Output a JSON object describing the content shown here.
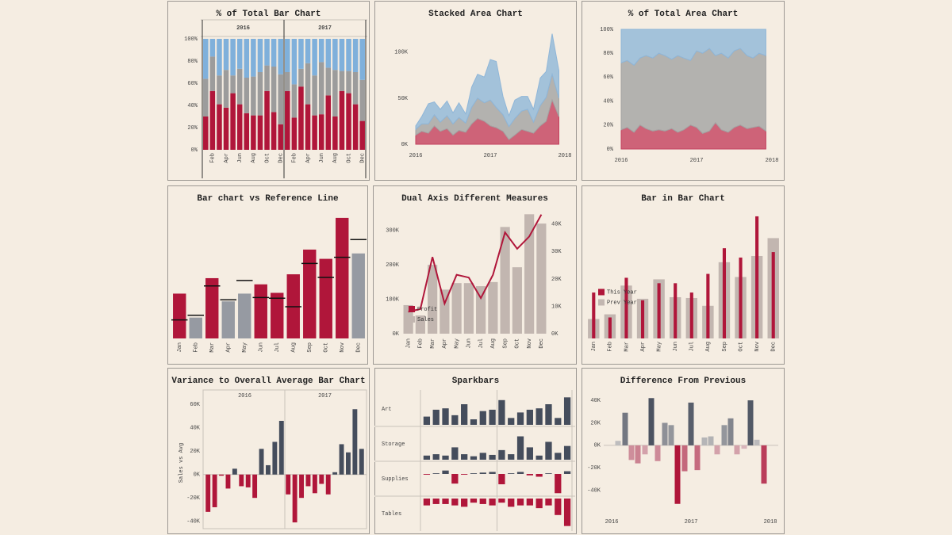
{
  "chart_data": [
    {
      "type": "percent-bar",
      "title": "% of Total Bar Chart",
      "groups": [
        {
          "name": "2016",
          "categories": [
            null,
            "Feb",
            null,
            "Apr",
            null,
            "Jun",
            null,
            "Aug",
            null,
            "Oct",
            null,
            "Dec"
          ]
        },
        {
          "name": "2017",
          "categories": [
            null,
            "Feb",
            null,
            "Apr",
            null,
            "Jun",
            null,
            "Aug",
            null,
            "Oct",
            null,
            "Dec"
          ]
        }
      ],
      "series": [
        {
          "color": "#b0163a",
          "values": [
            30,
            53,
            41,
            38,
            51,
            41,
            33,
            31,
            31,
            53,
            34,
            23,
            53,
            29,
            57,
            41,
            31,
            32,
            49,
            30,
            53,
            51,
            41,
            26
          ]
        },
        {
          "color": "#9c9c9c",
          "values": [
            34,
            31,
            26,
            34,
            16,
            32,
            32,
            35,
            39,
            23,
            41,
            45,
            17,
            30,
            16,
            37,
            36,
            47,
            25,
            42,
            18,
            20,
            29,
            37
          ]
        },
        {
          "color": "#7fb0db",
          "values": [
            36,
            16,
            33,
            28,
            33,
            27,
            35,
            34,
            30,
            24,
            25,
            32,
            30,
            41,
            27,
            22,
            33,
            21,
            26,
            28,
            29,
            29,
            30,
            37
          ]
        }
      ],
      "ylim": [
        0,
        100
      ],
      "yticks": [
        {
          "value": 0,
          "label": "0%"
        },
        {
          "value": 20,
          "label": "20%"
        },
        {
          "value": 40,
          "label": "40%"
        },
        {
          "value": 60,
          "label": "60%"
        },
        {
          "value": 80,
          "label": "80%"
        },
        {
          "value": 100,
          "label": "100%"
        }
      ]
    },
    {
      "type": "stacked-area",
      "title": "Stacked Area Chart",
      "x": [
        2016,
        2016.08,
        2016.17,
        2016.25,
        2016.33,
        2016.42,
        2016.5,
        2016.58,
        2016.67,
        2016.75,
        2016.83,
        2016.92,
        2017,
        2017.08,
        2017.17,
        2017.25,
        2017.33,
        2017.42,
        2017.5,
        2017.58,
        2017.67,
        2017.75,
        2017.83,
        2017.92
      ],
      "series": [
        {
          "color": "#c4405e",
          "values": [
            10000,
            14000,
            12000,
            20000,
            14000,
            17000,
            10000,
            15000,
            13000,
            22000,
            28000,
            25000,
            20000,
            18000,
            14000,
            5000,
            10000,
            16000,
            14000,
            12000,
            20000,
            25000,
            48000,
            30000
          ]
        },
        {
          "color": "#a3a3a3",
          "values": [
            6000,
            8000,
            10000,
            12000,
            10000,
            14000,
            12000,
            14000,
            10000,
            18000,
            22000,
            20000,
            28000,
            22000,
            18000,
            14000,
            18000,
            20000,
            24000,
            12000,
            22000,
            26000,
            28000,
            20000
          ]
        },
        {
          "color": "#8fb6d8",
          "values": [
            4000,
            8000,
            22000,
            14000,
            14000,
            16000,
            12000,
            16000,
            10000,
            22000,
            26000,
            28000,
            44000,
            50000,
            20000,
            12000,
            20000,
            16000,
            14000,
            14000,
            30000,
            28000,
            44000,
            30000
          ]
        }
      ],
      "xlim": [
        2016,
        2018
      ],
      "xticks": [
        2016,
        2017,
        2018
      ],
      "ylim": [
        0,
        130000
      ],
      "yticks": [
        {
          "value": 0,
          "label": "0K"
        },
        {
          "value": 50000,
          "label": "50K"
        },
        {
          "value": 100000,
          "label": "100K"
        }
      ]
    },
    {
      "type": "percent-area",
      "title": "% of Total Area Chart",
      "x": [
        2016,
        2016.08,
        2016.17,
        2016.25,
        2016.33,
        2016.42,
        2016.5,
        2016.58,
        2016.67,
        2016.75,
        2016.83,
        2016.92,
        2017,
        2017.08,
        2017.17,
        2017.25,
        2017.33,
        2017.42,
        2017.5,
        2017.58,
        2017.67,
        2017.75,
        2017.83,
        2017.92
      ],
      "series": [
        {
          "color": "#c4405e",
          "values": [
            16,
            18,
            14,
            20,
            17,
            15,
            16,
            15,
            17,
            14,
            16,
            20,
            18,
            13,
            15,
            22,
            16,
            14,
            18,
            20,
            17,
            18,
            19,
            15
          ]
        },
        {
          "color": "#a3a3a3",
          "values": [
            56,
            56,
            56,
            56,
            61,
            61,
            64,
            63,
            58,
            64,
            60,
            54,
            64,
            67,
            69,
            56,
            64,
            62,
            64,
            64,
            61,
            58,
            61,
            63
          ]
        },
        {
          "color": "#8fb6d8",
          "values": [
            28,
            26,
            30,
            24,
            22,
            24,
            20,
            22,
            25,
            22,
            24,
            26,
            18,
            20,
            16,
            22,
            20,
            24,
            18,
            16,
            22,
            24,
            20,
            22
          ]
        }
      ],
      "xlim": [
        2016,
        2018
      ],
      "xticks": [
        2016,
        2017,
        2018
      ],
      "ylim": [
        0,
        100
      ],
      "yticks": [
        {
          "value": 0,
          "label": "0%"
        },
        {
          "value": 20,
          "label": "20%"
        },
        {
          "value": 40,
          "label": "40%"
        },
        {
          "value": 60,
          "label": "60%"
        },
        {
          "value": 80,
          "label": "80%"
        },
        {
          "value": 100,
          "label": "100%"
        }
      ]
    },
    {
      "type": "bar-reference",
      "title": "Bar chart vs Reference Line",
      "categories": [
        "Jan",
        "Feb",
        "Mar",
        "Apr",
        "May",
        "Jun",
        "Jul",
        "Aug",
        "Sep",
        "Oct",
        "Nov",
        "Dec"
      ],
      "values": [
        58,
        27,
        78,
        48,
        58,
        70,
        59,
        83,
        115,
        103,
        156,
        110
      ],
      "reference": [
        24,
        30,
        68,
        50,
        75,
        53,
        52,
        41,
        97,
        79,
        105,
        128
      ],
      "colors": {
        "above": "#b0163a",
        "below": "#969aa2"
      },
      "reference_color": "#111111",
      "ylim": [
        0,
        160
      ]
    },
    {
      "type": "dual",
      "title": "Dual Axis Different Measures",
      "categories": [
        "Jan",
        "Feb",
        "Mar",
        "Apr",
        "May",
        "Jun",
        "Jul",
        "Aug",
        "Sep",
        "Oct",
        "Nov",
        "Dec"
      ],
      "series": [
        {
          "name": "Profit",
          "mark": "line",
          "axis": "y2",
          "color": "#b0163a",
          "values": [
            8000,
            9000,
            28000,
            11000,
            21500,
            20500,
            13000,
            21500,
            37000,
            31000,
            35500,
            43500
          ]
        },
        {
          "name": "Sales",
          "mark": "bar",
          "color": "#c2b6b0",
          "values": [
            83000,
            53000,
            200000,
            128000,
            147000,
            147000,
            138000,
            150000,
            310000,
            193000,
            347000,
            320000
          ]
        }
      ],
      "ylim": [
        0,
        350000
      ],
      "yticks": [
        {
          "value": 0,
          "label": "0K"
        },
        {
          "value": 100000,
          "label": "100K"
        },
        {
          "value": 200000,
          "label": "200K"
        },
        {
          "value": 300000,
          "label": "300K"
        }
      ],
      "y2lim": [
        0,
        44000
      ],
      "y2ticks": [
        {
          "value": 0,
          "label": "0K"
        },
        {
          "value": 10000,
          "label": "10K"
        },
        {
          "value": 20000,
          "label": "20K"
        },
        {
          "value": 30000,
          "label": "30K"
        },
        {
          "value": 40000,
          "label": "40K"
        }
      ],
      "legend": "bottom-left"
    },
    {
      "type": "bar-in-bar",
      "title": "Bar in Bar Chart",
      "categories": [
        "Jan",
        "Feb",
        "Mar",
        "Apr",
        "May",
        "Jun",
        "Jul",
        "Aug",
        "Sep",
        "Oct",
        "Nov",
        "Dec"
      ],
      "series": [
        {
          "name": "This Year",
          "color": "#b0163a",
          "values": [
            59,
            27,
            78,
            49,
            71,
            71,
            59,
            83,
            116,
            104,
            157,
            111
          ]
        },
        {
          "name": "Prev Year",
          "color": "#c2b6b0",
          "values": [
            25,
            31,
            68,
            51,
            76,
            53,
            52,
            42,
            98,
            79,
            106,
            129
          ]
        }
      ],
      "ylim": [
        0,
        160
      ],
      "legend": "middle-left"
    },
    {
      "type": "variance",
      "title": "Variance to Overall Average Bar Chart",
      "groups": [
        {
          "name": "2016",
          "values": [
            -32000,
            -28000,
            -1000,
            -12000,
            5000,
            -10000,
            -11000,
            -20000,
            22000,
            8000,
            28000,
            46000
          ]
        },
        {
          "name": "2017",
          "values": [
            -17000,
            -41000,
            -20000,
            -10000,
            -16000,
            -8000,
            -17000,
            2000,
            26000,
            19000,
            56000,
            22000
          ]
        }
      ],
      "y_label": "Sales vs Avg",
      "colors": {
        "positive": "#454d5c",
        "negative": "#b0163a"
      },
      "ylim": [
        -45000,
        65000
      ],
      "yticks": [
        {
          "value": -40000,
          "label": "-40K"
        },
        {
          "value": -20000,
          "label": "-20K"
        },
        {
          "value": 0,
          "label": "0K"
        },
        {
          "value": 20000,
          "label": "20K"
        },
        {
          "value": 40000,
          "label": "40K"
        },
        {
          "value": 60000,
          "label": "60K"
        }
      ]
    },
    {
      "type": "sparkbars",
      "title": "Sparkbars",
      "colors": {
        "positive": "#454d5c",
        "negative": "#b0163a"
      },
      "rows": [
        {
          "name": "Art",
          "ylim": [
            0,
            45
          ],
          "values": [
            12,
            22,
            24,
            14,
            30,
            8,
            20,
            22,
            36,
            10,
            18,
            22,
            24,
            30,
            10,
            40
          ]
        },
        {
          "name": "Storage",
          "ylim": [
            0,
            45
          ],
          "values": [
            6,
            8,
            6,
            18,
            8,
            5,
            10,
            7,
            14,
            8,
            34,
            18,
            6,
            26,
            10,
            20
          ]
        },
        {
          "name": "Supplies",
          "ylim": [
            -30,
            15
          ],
          "values": [
            -1,
            1,
            5,
            -14,
            -1,
            1,
            2,
            3,
            -15,
            1,
            3,
            -2,
            -4,
            1,
            -28,
            4
          ]
        },
        {
          "name": "Tables",
          "ylim": [
            -45,
            0
          ],
          "values": [
            -10,
            -8,
            -8,
            -10,
            -12,
            -6,
            -8,
            -10,
            -6,
            -12,
            -10,
            -10,
            -14,
            -10,
            -24,
            -40
          ]
        }
      ]
    },
    {
      "type": "difference",
      "title": "Difference From Previous",
      "x": [
        2016.08,
        2016.17,
        2016.25,
        2016.33,
        2016.42,
        2016.5,
        2016.58,
        2016.67,
        2016.75,
        2016.83,
        2016.92,
        2017,
        2017.08,
        2017.17,
        2017.25,
        2017.33,
        2017.42,
        2017.5,
        2017.58,
        2017.67,
        2017.75,
        2017.83,
        2017.92
      ],
      "values": [
        4000,
        29000,
        -13000,
        -16000,
        -8000,
        42000,
        -14000,
        20000,
        18000,
        -52000,
        -23000,
        38000,
        -22000,
        7000,
        8000,
        -8000,
        18000,
        24000,
        -8000,
        -3000,
        40000,
        5000,
        -34000
      ],
      "colors": {
        "positive": "#454d5c",
        "zero": "#e2dedb",
        "negative": "#b0163a"
      },
      "xlim": [
        2016,
        2018
      ],
      "xticks": [
        2016,
        2017,
        2018
      ],
      "ylim": [
        -55000,
        45000
      ],
      "yticks": [
        {
          "value": -40000,
          "label": "-40K"
        },
        {
          "value": -20000,
          "label": "-20K"
        },
        {
          "value": 0,
          "label": "0K"
        },
        {
          "value": 20000,
          "label": "20K"
        },
        {
          "value": 40000,
          "label": "40K"
        }
      ]
    }
  ]
}
